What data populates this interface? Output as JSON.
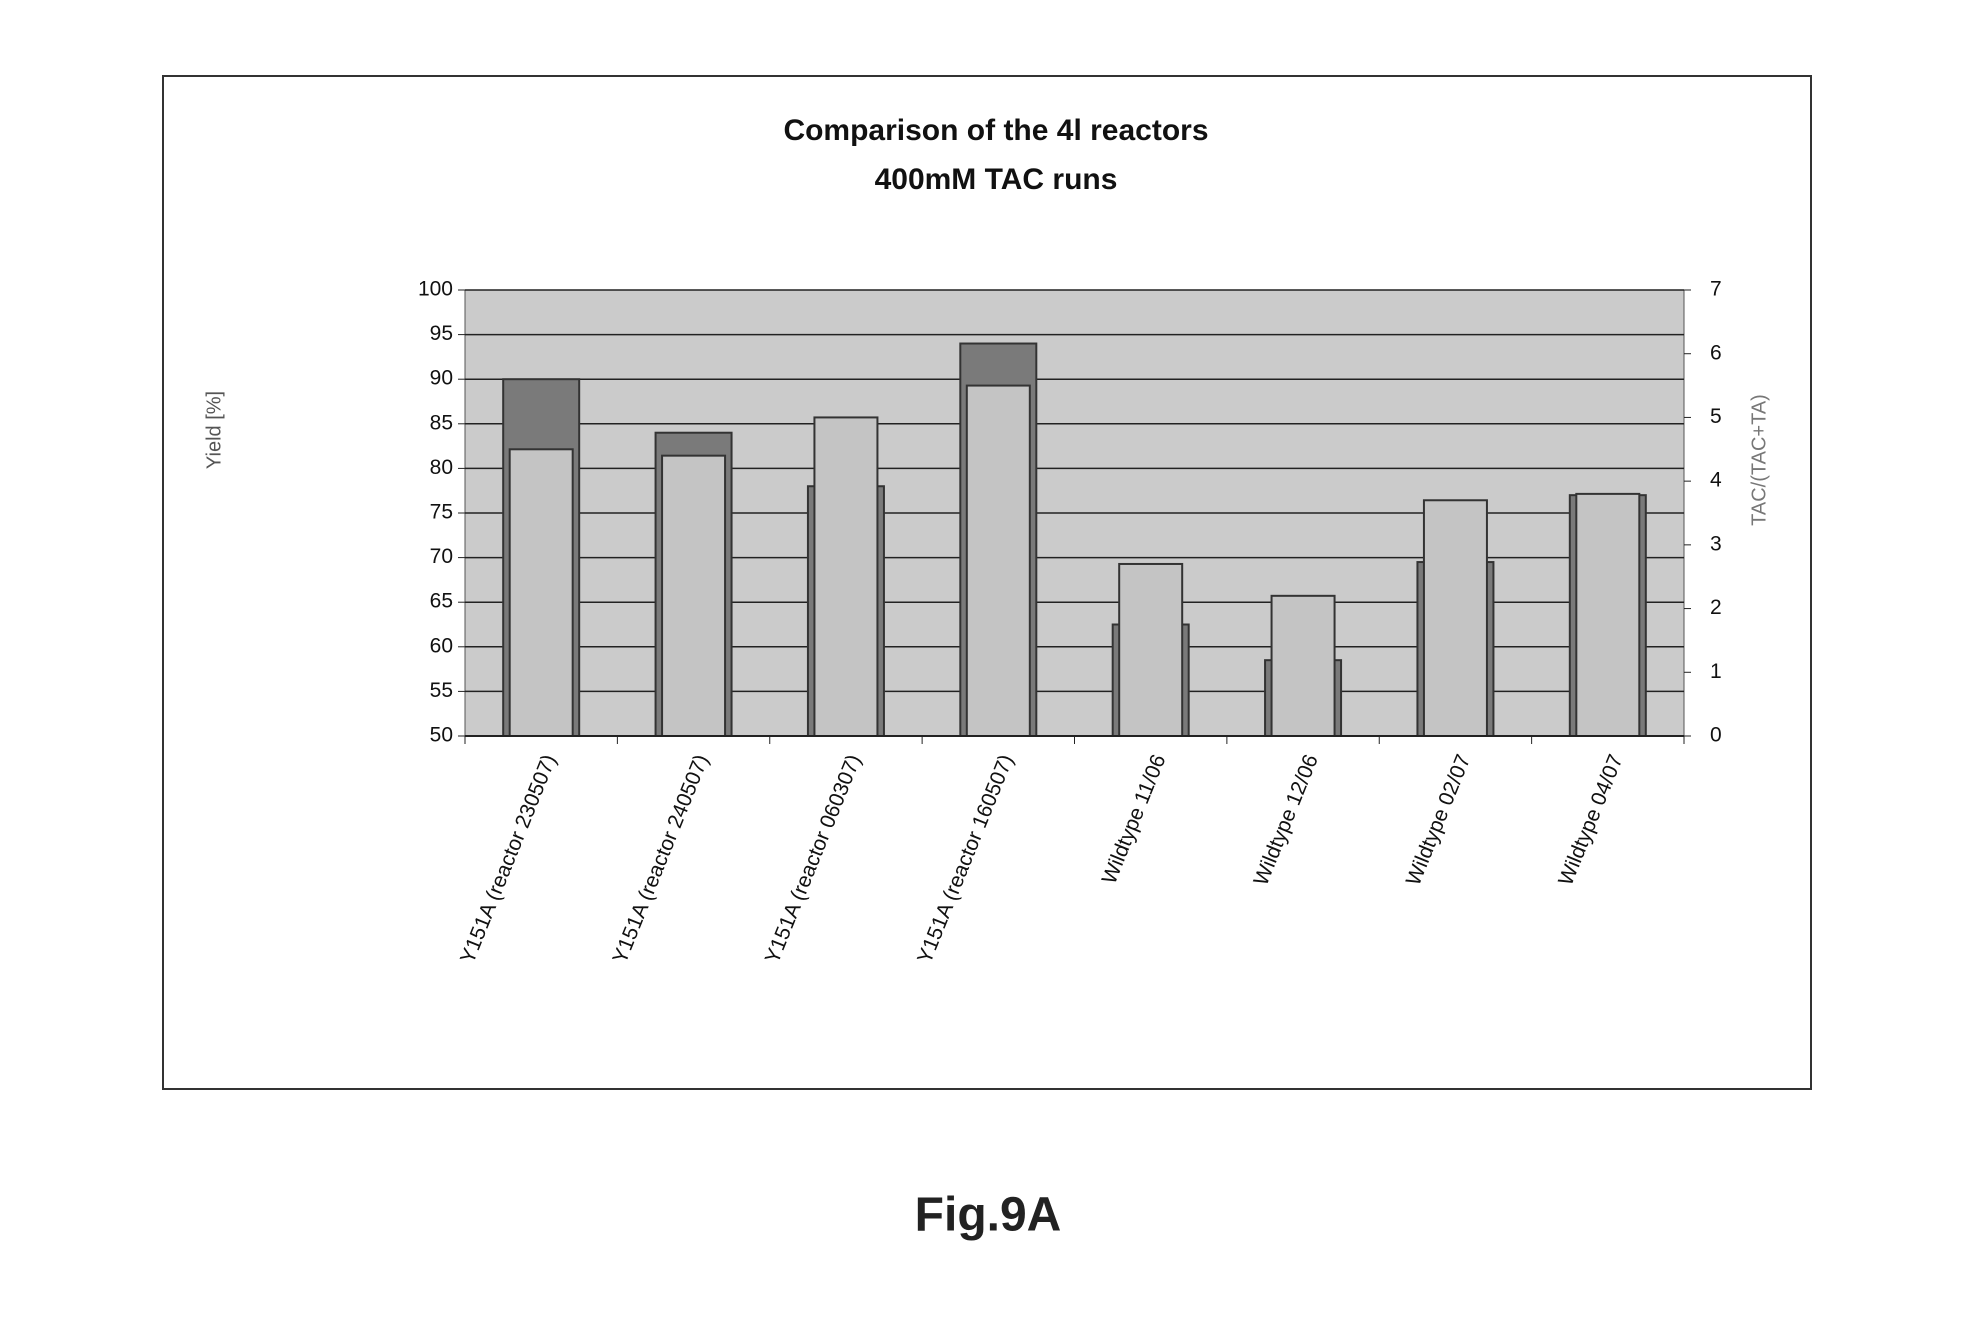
{
  "chart_data": {
    "type": "bar",
    "title": "Comparison of the 4l reactors",
    "subtitle": "400mM TAC runs",
    "y_label": "Yield [%]",
    "y2_label": "TAC/(TAC+TA)",
    "figure_label": "Fig.9A",
    "categories": [
      "Y151A (reactor 230507)",
      "Y151A (reactor 240507)",
      "Y151A (reactor 060307)",
      "Y151A (reactor 160507)",
      "Wildtype 11/06",
      "Wildtype 12/06",
      "Wildtype 02/07",
      "Wildtype 04/07"
    ],
    "series": [
      {
        "color": "#7a7a7a",
        "values": [
          90,
          84,
          78,
          94,
          62.5,
          58.5,
          69.5,
          77
        ]
      },
      {
        "color": "#c4c4c4",
        "axis": "y2",
        "values": [
          4.5,
          4.4,
          5.0,
          5.5,
          2.7,
          2.2,
          3.7,
          3.8
        ]
      }
    ],
    "ylim": [
      50,
      100
    ],
    "yticks": [
      50,
      55,
      60,
      65,
      70,
      75,
      80,
      85,
      90,
      95,
      100
    ],
    "y2lim": [
      0,
      7
    ],
    "y2ticks": [
      0,
      1,
      2,
      3,
      4,
      5,
      6,
      7
    ],
    "grid": true
  }
}
